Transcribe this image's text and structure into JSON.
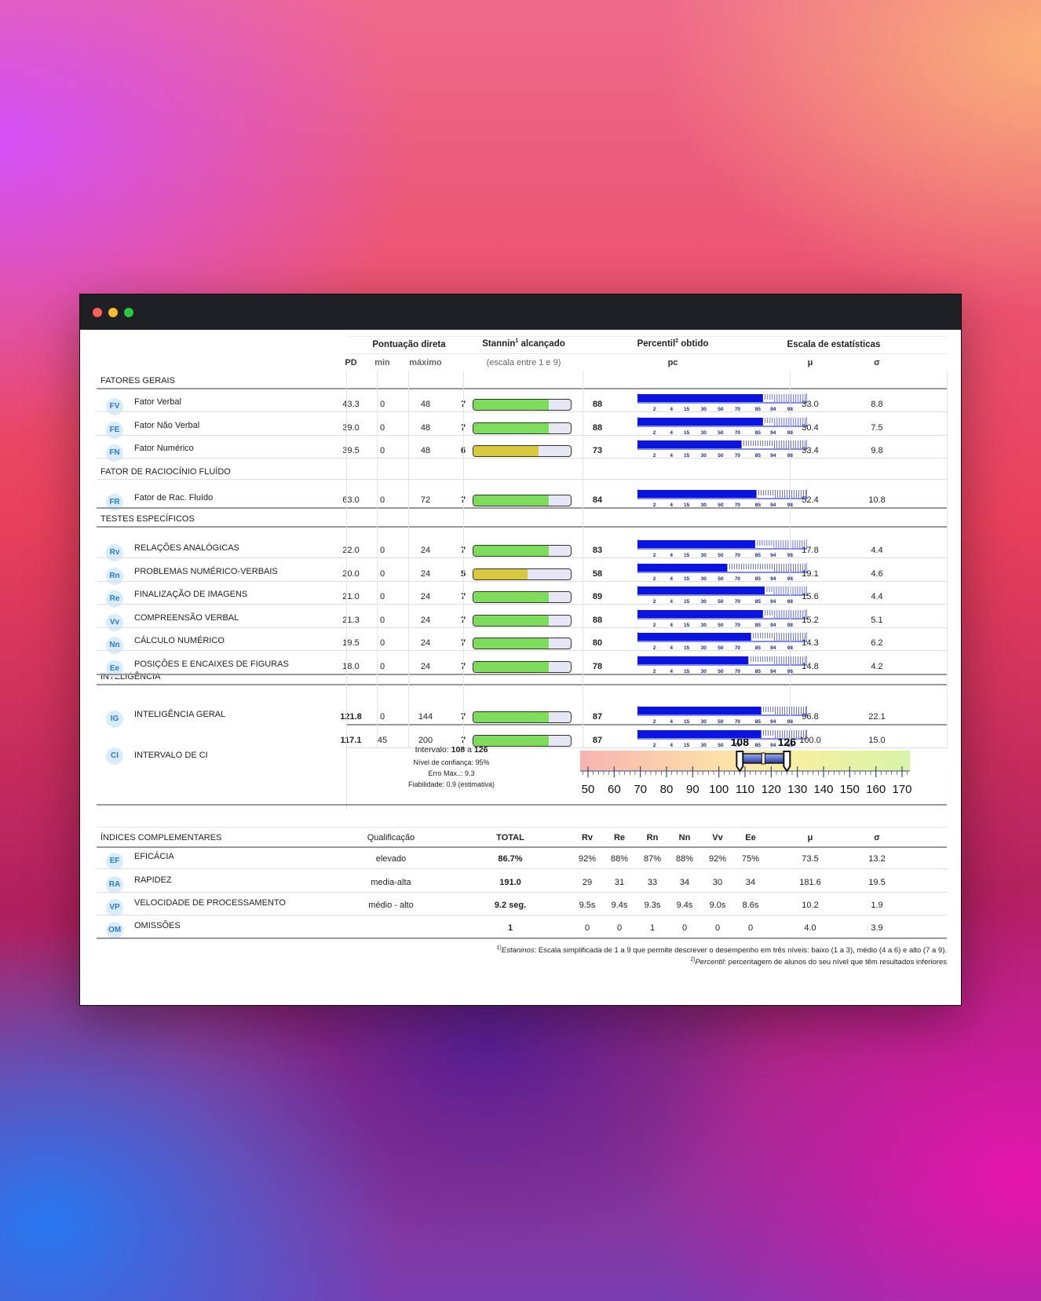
{
  "header": {
    "pontuacao": "Pontuação direta",
    "stannin_pre": "Stannin",
    "stannin_sup": "1",
    "stannin_post": " alcançado",
    "percentil_pre": "Percentil",
    "percentil_sup": "2",
    "percentil_post": " obtido",
    "escala": "Escala de estatísticas",
    "pd": "PD",
    "min": "min",
    "max": "máximo",
    "stan_sub": "(escala entre 1 e 9)",
    "pc": "pc",
    "mu": "μ",
    "sigma": "σ"
  },
  "percentile_ticks": [
    "2",
    "4",
    "15",
    "30",
    "50",
    "70",
    "85",
    "94",
    "98"
  ],
  "sections": {
    "fatores_gerais": "FATORES GERAIS",
    "raciocinio": "FATOR DE RACIOCÍNIO FLUÍDO",
    "testes": "TESTES ESPECÍFICOS",
    "inteligencia": "INTELIGÊNCIA"
  },
  "rows": [
    {
      "code": "FV",
      "name": "Fator Verbal",
      "pd": "43.3",
      "min": "0",
      "max": "48",
      "stan": 7,
      "pc": 88,
      "mu": "33.0",
      "sigma": "8.8",
      "color": "#7ddc5a"
    },
    {
      "code": "FE",
      "name": "Fator Não Verbal",
      "pd": "39.0",
      "min": "0",
      "max": "48",
      "stan": 7,
      "pc": 88,
      "mu": "30.4",
      "sigma": "7.5",
      "color": "#7ddc5a"
    },
    {
      "code": "FN",
      "name": "Fator Numérico",
      "pd": "39.5",
      "min": "0",
      "max": "48",
      "stan": 6,
      "pc": 73,
      "mu": "33.4",
      "sigma": "9.8",
      "color": "#d8c93c"
    },
    {
      "code": "FR",
      "name": "Fator de Rac. Fluído",
      "pd": "63.0",
      "min": "0",
      "max": "72",
      "stan": 7,
      "pc": 84,
      "mu": "52.4",
      "sigma": "10.8",
      "color": "#7ddc5a"
    },
    {
      "code": "Rv",
      "name": "RELAÇÕES ANALÓGICAS",
      "pd": "22.0",
      "min": "0",
      "max": "24",
      "stan": 7,
      "pc": 83,
      "mu": "17.8",
      "sigma": "4.4",
      "color": "#7ddc5a"
    },
    {
      "code": "Rn",
      "name": "PROBLEMAS NUMÉRICO-VERBAIS",
      "pd": "20.0",
      "min": "0",
      "max": "24",
      "stan": 5,
      "pc": 58,
      "mu": "19.1",
      "sigma": "4.6",
      "color": "#d8c93c"
    },
    {
      "code": "Re",
      "name": "FINALIZAÇÃO DE IMAGENS",
      "pd": "21.0",
      "min": "0",
      "max": "24",
      "stan": 7,
      "pc": 89,
      "mu": "15.6",
      "sigma": "4.4",
      "color": "#7ddc5a"
    },
    {
      "code": "Vv",
      "name": "COMPREENSÃO VERBAL",
      "pd": "21.3",
      "min": "0",
      "max": "24",
      "stan": 7,
      "pc": 88,
      "mu": "15.2",
      "sigma": "5.1",
      "color": "#7ddc5a"
    },
    {
      "code": "Nn",
      "name": "CÁLCULO NUMÉRICO",
      "pd": "19.5",
      "min": "0",
      "max": "24",
      "stan": 7,
      "pc": 80,
      "mu": "14.3",
      "sigma": "6.2",
      "color": "#7ddc5a"
    },
    {
      "code": "Ee",
      "name": "POSIÇÕES E ENCAIXES DE FIGURAS",
      "pd": "18.0",
      "min": "0",
      "max": "24",
      "stan": 7,
      "pc": 78,
      "mu": "14.8",
      "sigma": "4.2",
      "color": "#7ddc5a"
    },
    {
      "code": "IG",
      "name": "INTELIGÊNCIA GERAL",
      "pd": "121.8",
      "min": "0",
      "max": "144",
      "stan": 7,
      "pc": 87,
      "mu": "96.8",
      "sigma": "22.1",
      "color": "#7ddc5a"
    },
    {
      "code": "",
      "name": "",
      "pd": "117.1",
      "min": "45",
      "max": "200",
      "stan": 7,
      "pc": 87,
      "mu": "100.0",
      "sigma": "15.0",
      "color": "#7ddc5a"
    }
  ],
  "ci": {
    "code": "CI",
    "name": "INTERVALO DE CI",
    "interval_label": "Intervalo: ",
    "low": "108",
    "a": " a ",
    "high": "126",
    "confidence": "Nível de confiança: 95%",
    "error": "Erro Máx..: 9.3",
    "reliability": "Fiabilidade: 0.9 (estimativa)",
    "scale_ticks": [
      "50",
      "60",
      "70",
      "80",
      "90",
      "100",
      "110",
      "120",
      "130",
      "140",
      "150",
      "160",
      "170"
    ],
    "scale_min": 47,
    "scale_max": 173,
    "low_value": 108,
    "high_value": 126
  },
  "complementares": {
    "title": "ÍNDICES COMPLEMENTARES",
    "headers": [
      "Qualificação",
      "TOTAL",
      "Rv",
      "Re",
      "Rn",
      "Nn",
      "Vv",
      "Ee",
      "μ",
      "σ"
    ],
    "rows": [
      {
        "code": "EF",
        "name": "EFICÁCIA",
        "qual": "elevado",
        "total": "86.7%",
        "v": [
          "92%",
          "88%",
          "87%",
          "88%",
          "92%",
          "75%"
        ],
        "mu": "73.5",
        "sigma": "13.2"
      },
      {
        "code": "RA",
        "name": "RAPIDEZ",
        "qual": "media-alta",
        "total": "191.0",
        "v": [
          "29",
          "31",
          "33",
          "34",
          "30",
          "34"
        ],
        "mu": "181.6",
        "sigma": "19.5"
      },
      {
        "code": "VP",
        "name": "VELOCIDADE DE PROCESSAMENTO",
        "qual": "médio - alto",
        "total": "9.2 seg.",
        "v": [
          "9.5s",
          "9.4s",
          "9.3s",
          "9.4s",
          "9.0s",
          "8.6s"
        ],
        "mu": "10.2",
        "sigma": "1.9"
      },
      {
        "code": "OM",
        "name": "OMISSÕES",
        "qual": "",
        "total": "1",
        "v": [
          "0",
          "0",
          "1",
          "0",
          "0",
          "0"
        ],
        "mu": "4.0",
        "sigma": "3.9"
      }
    ]
  },
  "footnotes": {
    "f1_sup": "1)",
    "f1_term": "Estaninos",
    "f1_text": ": Escala simplificada de 1 a 9 que permite descrever o desempenho em três níveis: baixo (1 a 3), médio (4 a 6) e alto (7 a 9).",
    "f2_sup": "2)",
    "f2_term": "Percentil",
    "f2_text": ": percentagem de alunos do seu nível que têm resultados inferiores"
  },
  "colors": {
    "percentile_bar": "#0a14e0",
    "stan_high": "#7ddc5a",
    "stan_mid": "#d8c93c",
    "badge_text": "#2a7bd0"
  }
}
